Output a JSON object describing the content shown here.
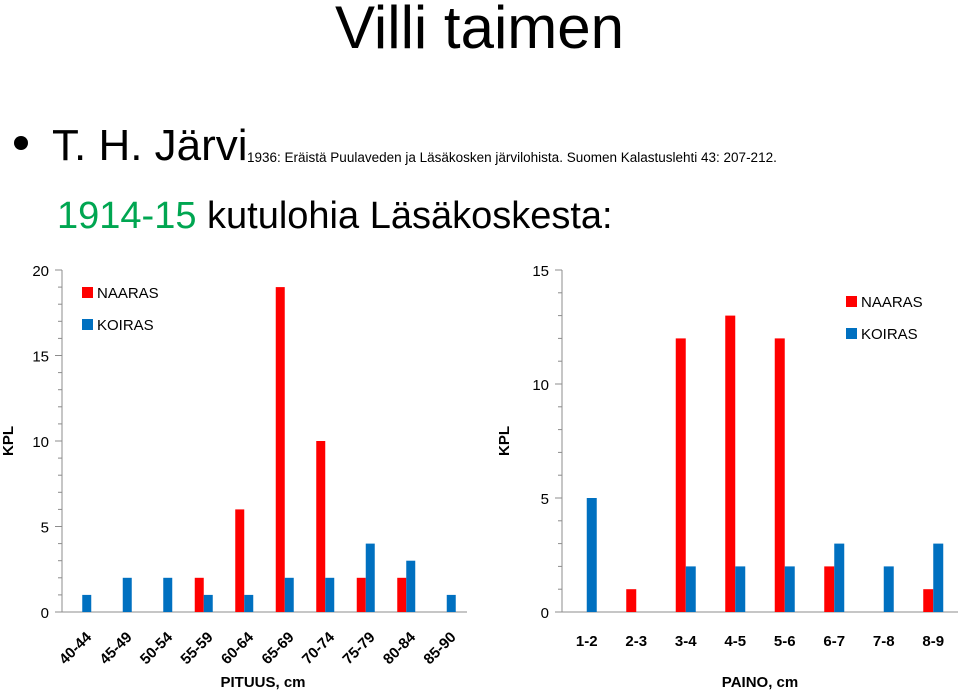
{
  "slide": {
    "title": "Villi taimen",
    "author": "T. H. Järvi",
    "reference": "1936: Eräistä Puulaveden ja Läsäkosken järvilohista. Suomen Kalastuslehti 43: 207-212.",
    "subheading_year": "1914-15",
    "subheading_rest": " kutulohia Läsäkoskesta:"
  },
  "colors": {
    "naaras": "#ff0000",
    "koiras": "#0070c0",
    "accent_green": "#00a651"
  },
  "chart_data": [
    {
      "type": "bar",
      "xlabel": "PITUUS, cm",
      "ylabel": "KPL",
      "ylim": [
        0,
        20
      ],
      "yticks": [
        0,
        5,
        10,
        15,
        20
      ],
      "grid": false,
      "legend": "top-left",
      "categories": [
        "40-44",
        "45-49",
        "50-54",
        "55-59",
        "60-64",
        "65-69",
        "70-74",
        "75-79",
        "80-84",
        "85-90"
      ],
      "series": [
        {
          "name": "NAARAS",
          "color": "#ff0000",
          "values": [
            0,
            0,
            0,
            2,
            6,
            19,
            10,
            2,
            2,
            0
          ]
        },
        {
          "name": "KOIRAS",
          "color": "#0070c0",
          "values": [
            1,
            2,
            2,
            1,
            1,
            2,
            2,
            4,
            3,
            1
          ]
        }
      ]
    },
    {
      "type": "bar",
      "xlabel": "PAINO, cm",
      "ylabel": "KPL",
      "ylim": [
        0,
        15
      ],
      "yticks": [
        0,
        5,
        10,
        15
      ],
      "grid": false,
      "legend": "top-right",
      "categories": [
        "1-2",
        "2-3",
        "3-4",
        "4-5",
        "5-6",
        "6-7",
        "7-8",
        "8-9"
      ],
      "series": [
        {
          "name": "NAARAS",
          "color": "#ff0000",
          "values": [
            0,
            1,
            12,
            13,
            12,
            2,
            0,
            1
          ]
        },
        {
          "name": "KOIRAS",
          "color": "#0070c0",
          "values": [
            5,
            0,
            2,
            2,
            2,
            3,
            2,
            3
          ]
        }
      ]
    }
  ]
}
